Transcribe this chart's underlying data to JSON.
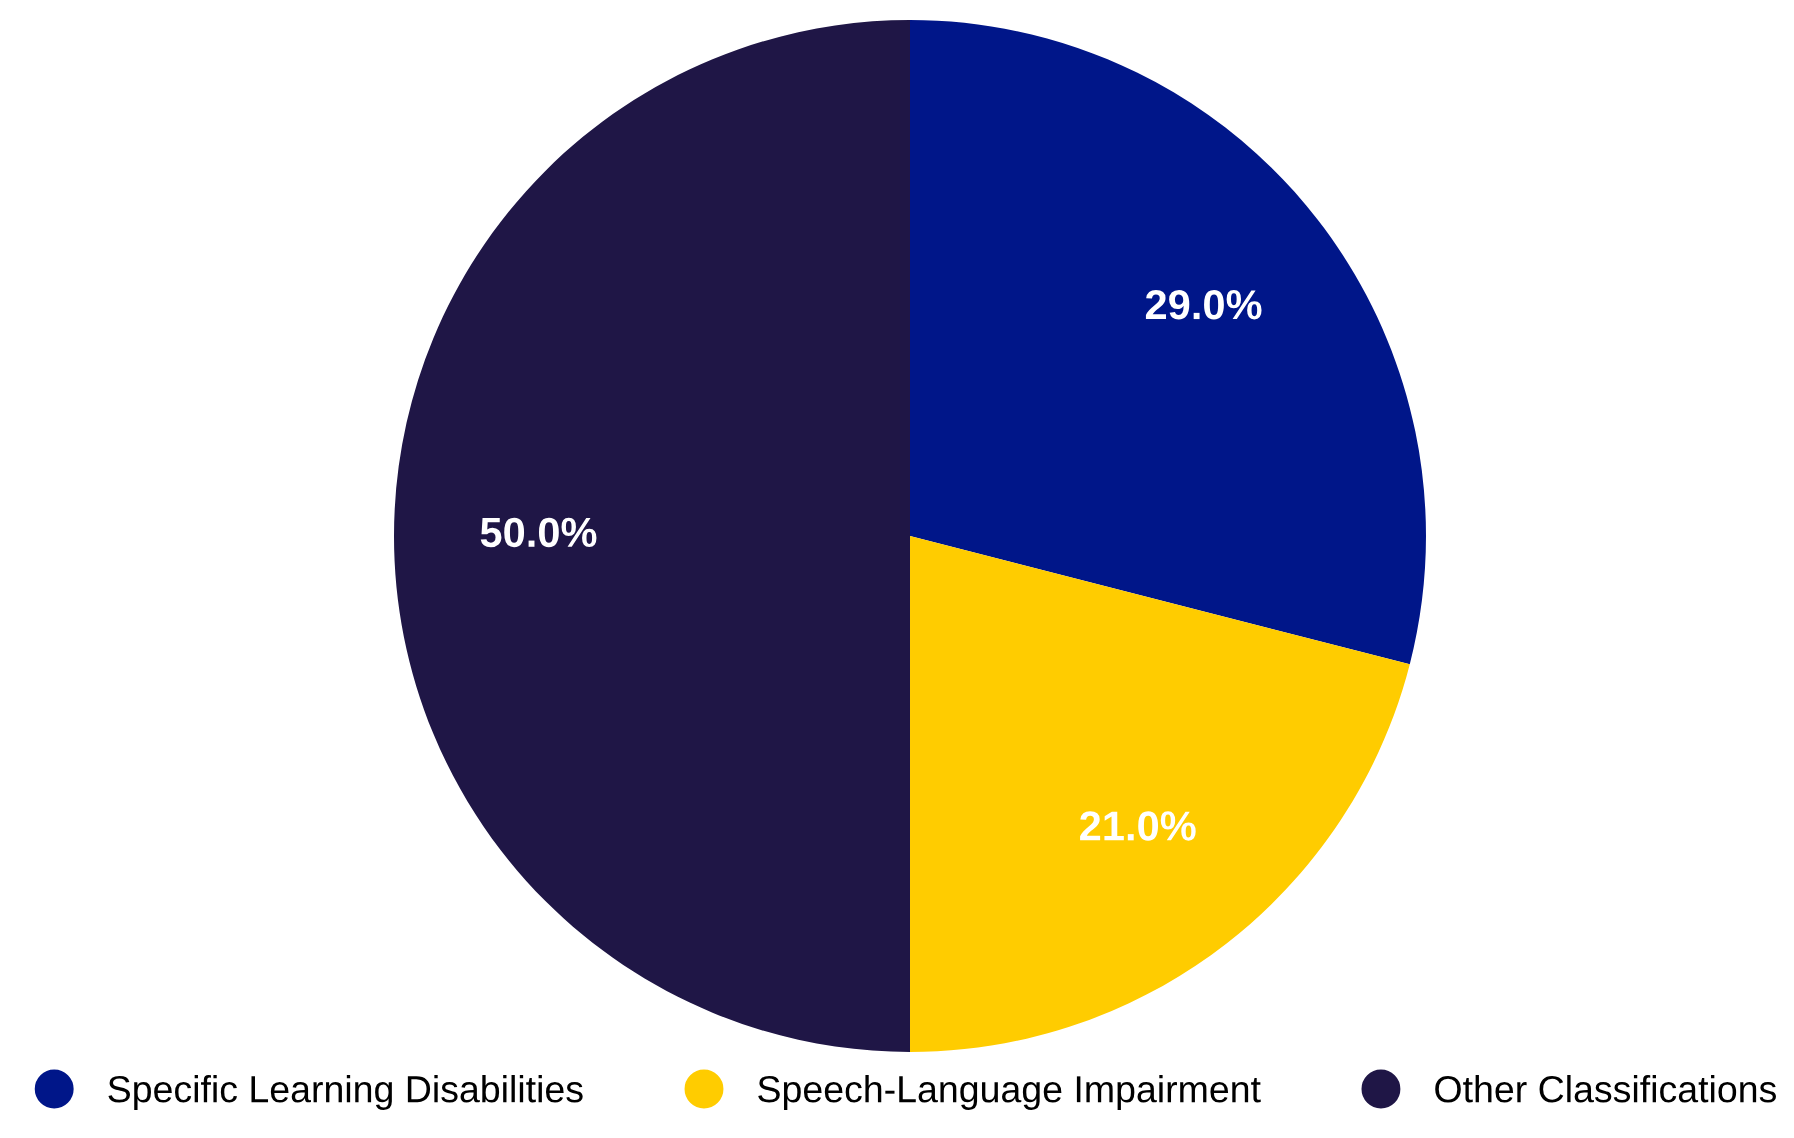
{
  "chart_data": {
    "type": "pie",
    "categories": [
      "Specific Learning Disabilities",
      "Speech-Language Impairment",
      "Other Classifications"
    ],
    "values": [
      29,
      21,
      50
    ],
    "colors": [
      "#001689",
      "#ffcc00",
      "#1f1646"
    ],
    "value_labels": [
      "29.0%",
      "21.0%",
      "50.0%"
    ],
    "legend": "bottom"
  }
}
